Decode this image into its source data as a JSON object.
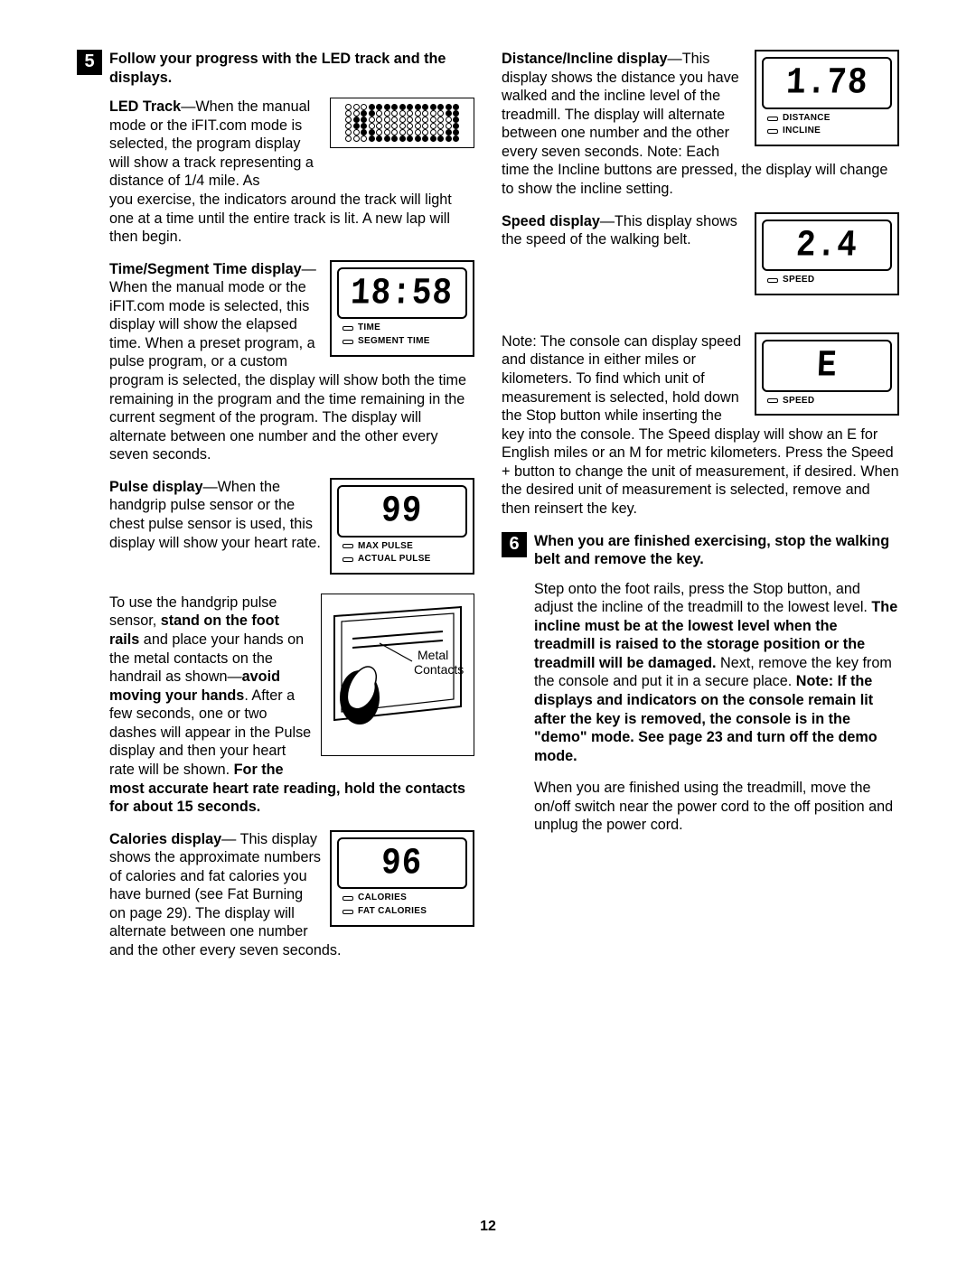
{
  "page_number": "12",
  "styling": {
    "text_color": "#000000",
    "background": "#ffffff",
    "body_fontsize": 16.2,
    "title_fontsize": 16.2,
    "badge_bg": "#000000",
    "badge_fg": "#ffffff",
    "lcd_border": "#000000",
    "led_on": "#000000",
    "led_off": "#ffffff"
  },
  "step5": {
    "badge": "5",
    "title": "Follow your progress with the LED track and the displays.",
    "led_track_title_bold": "LED Track",
    "led_track_text_a": "—When the manual mode or the iFIT.com mode is selected, the program display will show a track representing a distance of 1/4 mile. As",
    "led_track_text_b": "you exercise, the indicators around the track will light one at a time until the entire track is lit. A new lap will then begin.",
    "time_title_bold": "Time/Segment Time display",
    "time_text_a": "—When the manual mode or the iFIT.com mode is selected, this display will show the elapsed time. When a preset",
    "time_text_b": "program, a pulse program, or a custom program is selected, the display will show both the time remaining in the program and the time remaining in the current segment of the program. The display will alternate between one number and the other every seven seconds.",
    "lcd_time_value": "18:58",
    "lcd_time_label1": "TIME",
    "lcd_time_label2": "SEGMENT TIME",
    "pulse_title_bold": "Pulse display",
    "pulse_text": "—When the handgrip pulse sensor or the chest pulse sensor is used, this display will show your heart rate.",
    "lcd_pulse_value": "99",
    "lcd_pulse_label1": "MAX PULSE",
    "lcd_pulse_label2": "ACTUAL PULSE",
    "handgrip_pre": "To use the handgrip pulse sensor, ",
    "handgrip_bold1": "stand on the foot rails",
    "handgrip_mid1": " and place your hands on the metal contacts on the handrail as shown—",
    "handgrip_bold2": "avoid moving your hands",
    "handgrip_mid2": ". After a few seconds, one or two dashes will appear in the Pulse display and then your heart rate will be shown. ",
    "handgrip_bold3": "For the most accurate heart rate reading, hold the contacts for about 15 seconds.",
    "metal_contacts_label": "Metal Contacts",
    "cal_title_bold": "Calories display",
    "cal_text_a": "— This display shows the approximate numbers of calories and fat calories you have burned (see Fat Burning on page 29). The display",
    "cal_text_b": "will alternate between one number and the other every seven seconds.",
    "lcd_cal_value": "96",
    "lcd_cal_label1": "CALORIES",
    "lcd_cal_label2": "FAT CALORIES"
  },
  "rightcol": {
    "dist_title_bold": "Distance/Incline display",
    "dist_text_a": "—This display shows the distance you have walked and the incline level of the treadmill. The display will alternate between one",
    "dist_text_b": "number and the other every seven seconds. Note: Each time the Incline buttons are pressed, the display will change to show the incline setting.",
    "lcd_dist_value": "1.78",
    "lcd_dist_label1": "DISTANCE",
    "lcd_dist_label2": "INCLINE",
    "speed_title_bold": "Speed display",
    "speed_text": "—This display shows the speed of the walking belt.",
    "lcd_speed_value": "2.4",
    "lcd_speed_label": "SPEED",
    "note_text_a": "Note: The console can display speed and distance in either miles or kilometers. To find which unit of measurement is selected, hold down the Stop button",
    "note_text_b": "while inserting the key into the console. The Speed display will show an E for English miles or an M for metric kilometers. Press the Speed + button to change the unit of measurement, if desired. When the desired unit of measurement is selected, remove and then reinsert the key.",
    "lcd_e_value": "E",
    "lcd_e_label": "SPEED"
  },
  "step6": {
    "badge": "6",
    "title": "When you are finished exercising, stop the walking belt and remove the key.",
    "p1_a": "Step onto the foot rails, press the Stop button, and adjust the incline of the treadmill to the lowest level. ",
    "p1_b": "The incline must be at the lowest level when the treadmill is raised to the storage position or the treadmill will be damaged.",
    "p1_c": " Next, remove the key from the console and put it in a secure place. ",
    "p1_d": "Note: If the displays and indicators on the console remain lit after the key is removed, the console is in the \"demo\" mode. See page 23 and turn off the demo mode.",
    "p2": "When you are finished using the treadmill, move the on/off switch near the power cord to the off position and unplug the power cord."
  },
  "led_track_pattern": [
    "000111111111111",
    "001100000000011",
    "011000000000001",
    "011000000000001",
    "001100000000011",
    "000111111111111"
  ]
}
